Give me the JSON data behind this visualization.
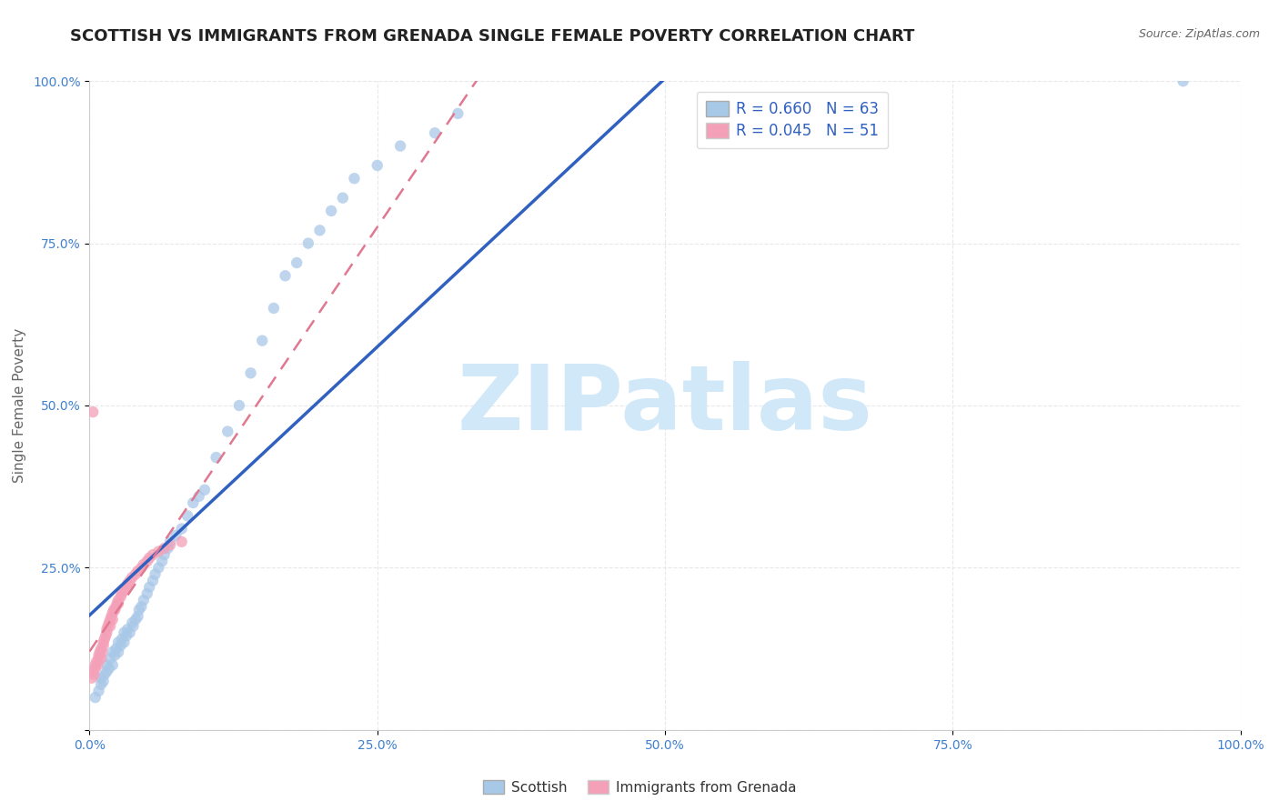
{
  "title": "SCOTTISH VS IMMIGRANTS FROM GRENADA SINGLE FEMALE POVERTY CORRELATION CHART",
  "source": "Source: ZipAtlas.com",
  "ylabel": "Single Female Poverty",
  "xlim": [
    0.0,
    1.0
  ],
  "ylim": [
    0.0,
    1.0
  ],
  "xtick_labels": [
    "0.0%",
    "25.0%",
    "50.0%",
    "75.0%",
    "100.0%"
  ],
  "ytick_labels": [
    "",
    "25.0%",
    "50.0%",
    "75.0%",
    "100.0%"
  ],
  "xtick_positions": [
    0.0,
    0.25,
    0.5,
    0.75,
    1.0
  ],
  "ytick_positions": [
    0.0,
    0.25,
    0.5,
    0.75,
    1.0
  ],
  "scottish_color": "#a8c8e8",
  "grenada_color": "#f4a0b8",
  "scottish_line_color": "#3060c0",
  "grenada_line_color": "#e07890",
  "R_scottish": 0.66,
  "N_scottish": 63,
  "R_grenada": 0.045,
  "N_grenada": 51,
  "legend_label_scottish": "Scottish",
  "legend_label_grenada": "Immigrants from Grenada",
  "scottish_x": [
    0.005,
    0.008,
    0.01,
    0.01,
    0.012,
    0.013,
    0.015,
    0.015,
    0.017,
    0.018,
    0.02,
    0.02,
    0.022,
    0.023,
    0.025,
    0.025,
    0.027,
    0.028,
    0.03,
    0.03,
    0.032,
    0.033,
    0.035,
    0.037,
    0.038,
    0.04,
    0.042,
    0.043,
    0.045,
    0.047,
    0.05,
    0.052,
    0.055,
    0.057,
    0.06,
    0.063,
    0.065,
    0.068,
    0.07,
    0.075,
    0.08,
    0.085,
    0.09,
    0.095,
    0.1,
    0.11,
    0.12,
    0.13,
    0.14,
    0.15,
    0.16,
    0.17,
    0.18,
    0.19,
    0.2,
    0.21,
    0.22,
    0.23,
    0.25,
    0.27,
    0.3,
    0.32,
    0.95
  ],
  "scottish_y": [
    0.05,
    0.06,
    0.07,
    0.08,
    0.075,
    0.085,
    0.09,
    0.1,
    0.095,
    0.11,
    0.1,
    0.12,
    0.115,
    0.125,
    0.12,
    0.135,
    0.13,
    0.14,
    0.135,
    0.15,
    0.145,
    0.155,
    0.15,
    0.165,
    0.16,
    0.17,
    0.175,
    0.185,
    0.19,
    0.2,
    0.21,
    0.22,
    0.23,
    0.24,
    0.25,
    0.26,
    0.27,
    0.28,
    0.29,
    0.3,
    0.31,
    0.33,
    0.35,
    0.36,
    0.37,
    0.42,
    0.46,
    0.5,
    0.55,
    0.6,
    0.65,
    0.7,
    0.72,
    0.75,
    0.77,
    0.8,
    0.82,
    0.85,
    0.87,
    0.9,
    0.92,
    0.95,
    1.0
  ],
  "grenada_x": [
    0.002,
    0.003,
    0.004,
    0.005,
    0.005,
    0.006,
    0.007,
    0.008,
    0.008,
    0.009,
    0.01,
    0.01,
    0.011,
    0.012,
    0.012,
    0.013,
    0.014,
    0.015,
    0.015,
    0.016,
    0.017,
    0.018,
    0.018,
    0.019,
    0.02,
    0.02,
    0.021,
    0.022,
    0.023,
    0.024,
    0.025,
    0.025,
    0.027,
    0.028,
    0.03,
    0.032,
    0.033,
    0.035,
    0.037,
    0.04,
    0.042,
    0.045,
    0.047,
    0.05,
    0.052,
    0.055,
    0.06,
    0.065,
    0.07,
    0.08,
    0.003
  ],
  "grenada_y": [
    0.08,
    0.09,
    0.085,
    0.1,
    0.095,
    0.105,
    0.1,
    0.11,
    0.115,
    0.12,
    0.11,
    0.125,
    0.12,
    0.13,
    0.135,
    0.14,
    0.145,
    0.15,
    0.155,
    0.16,
    0.165,
    0.16,
    0.17,
    0.175,
    0.17,
    0.18,
    0.185,
    0.185,
    0.19,
    0.195,
    0.195,
    0.2,
    0.205,
    0.21,
    0.215,
    0.22,
    0.225,
    0.23,
    0.235,
    0.24,
    0.245,
    0.25,
    0.255,
    0.26,
    0.265,
    0.27,
    0.275,
    0.28,
    0.285,
    0.29,
    0.49
  ],
  "background_color": "#ffffff",
  "grid_color": "#e8e8e8",
  "title_fontsize": 13,
  "label_fontsize": 11,
  "tick_fontsize": 10,
  "legend_fontsize": 12,
  "watermark_text": "ZIPatlas",
  "watermark_color": "#d0e8f8",
  "watermark_fontsize": 72
}
